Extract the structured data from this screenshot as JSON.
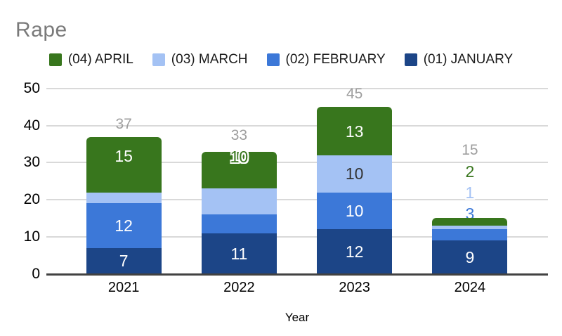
{
  "title": "Rape",
  "colors": {
    "title_text": "#7a7a7a",
    "legend_text": "#1a1a1a",
    "grid_line": "#d9d9d9",
    "axis_line": "#424242",
    "tick_text": "#000000",
    "total_label": "#9e9e9e"
  },
  "chart_data": {
    "type": "bar",
    "stacked": true,
    "title": "Rape",
    "xlabel": "Year",
    "ylabel": "",
    "ylim": [
      0,
      50
    ],
    "yticks": [
      0,
      10,
      20,
      30,
      40,
      50
    ],
    "grid": true,
    "legend_position": "top",
    "categories": [
      "2021",
      "2022",
      "2023",
      "2024"
    ],
    "series": [
      {
        "name": "(01) JANUARY",
        "color": "#1c4587",
        "inside_text_color": "#ffffff",
        "values": [
          7,
          11,
          12,
          9
        ]
      },
      {
        "name": "(02) FEBRUARY",
        "color": "#3c78d8",
        "inside_text_color": "#ffffff",
        "values": [
          12,
          5,
          10,
          3
        ]
      },
      {
        "name": "(03) MARCH",
        "color": "#a4c2f4",
        "inside_text_color": "#333333",
        "values": [
          3,
          7,
          10,
          1
        ]
      },
      {
        "name": "(04) APRIL",
        "color": "#38761d",
        "inside_text_color": "#ffffff",
        "values": [
          15,
          10,
          13,
          2
        ]
      }
    ],
    "totals": [
      37,
      33,
      45,
      15
    ],
    "legend_order": [
      "(04) APRIL",
      "(03) MARCH",
      "(02) FEBRUARY",
      "(01) JANUARY"
    ]
  }
}
